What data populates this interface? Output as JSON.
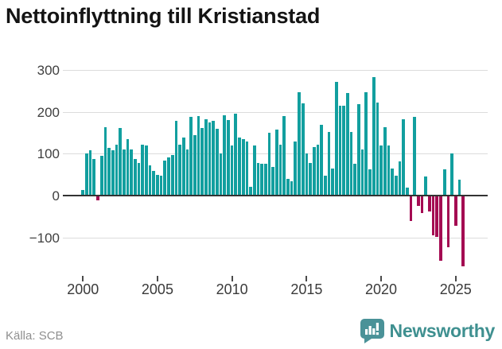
{
  "title": "Nettoinflyttning till Kristianstad",
  "source": "Källa: SCB",
  "logo": {
    "text": "Newsworthy",
    "icon": "newsworthy-speech-bubble-bar-chart-icon"
  },
  "colors": {
    "positive_bar": "#129f9f",
    "negative_bar": "#a40b52",
    "gridline": "#dcdcdc",
    "zero_line": "#333333",
    "axis_text": "#3f3f3f",
    "title_text": "#141414",
    "source_text": "#8f8f8f",
    "logo_teal": "#3f9090",
    "logo_icon_bg": "#4a9298"
  },
  "chart_data": {
    "type": "bar",
    "title": "Nettoinflyttning till Kristianstad",
    "xlabel": "",
    "ylabel": "",
    "frequency": "quarterly",
    "x_start": "2000 Q1",
    "x_end": "2025 Q3",
    "ylim": [
      -184,
      315
    ],
    "grid": "horizontal",
    "legend": "none",
    "y_ticks": [
      300,
      200,
      100,
      0,
      -100
    ],
    "y_tick_labels": [
      "300",
      "200",
      "100",
      "0",
      "−100"
    ],
    "x_tick_years": [
      2000,
      2005,
      2010,
      2015,
      2020,
      2025
    ],
    "x_tick_labels": [
      "2000",
      "2005",
      "2010",
      "2015",
      "2020",
      "2025"
    ],
    "values": [
      13,
      100,
      108,
      87,
      -10,
      94,
      163,
      114,
      108,
      122,
      161,
      110,
      134,
      111,
      87,
      78,
      122,
      119,
      73,
      59,
      49,
      47,
      84,
      92,
      97,
      178,
      122,
      138,
      110,
      187,
      144,
      189,
      161,
      182,
      174,
      179,
      159,
      100,
      192,
      180,
      120,
      195,
      138,
      135,
      130,
      21,
      119,
      77,
      76,
      76,
      149,
      68,
      157,
      122,
      190,
      40,
      35,
      130,
      247,
      220,
      100,
      78,
      116,
      122,
      168,
      47,
      151,
      65,
      271,
      215,
      215,
      244,
      151,
      76,
      218,
      111,
      246,
      62,
      282,
      222,
      119,
      163,
      119,
      65,
      47,
      81,
      182,
      19,
      -58,
      188,
      -23,
      -39,
      46,
      -36,
      -93,
      -96,
      -153,
      62,
      -121,
      100,
      -71,
      38,
      -166
    ]
  }
}
